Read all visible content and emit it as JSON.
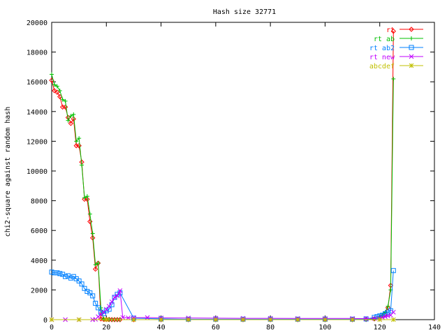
{
  "chart_data": {
    "type": "line",
    "title": "Hash size 32771",
    "xlabel": "",
    "ylabel": "chi2-square against random hash",
    "xlim": [
      0,
      140
    ],
    "ylim": [
      0,
      20000
    ],
    "xticks": [
      0,
      20,
      40,
      60,
      80,
      100,
      120,
      140
    ],
    "yticks": [
      0,
      2000,
      4000,
      6000,
      8000,
      10000,
      12000,
      14000,
      16000,
      18000,
      20000
    ],
    "grid": false,
    "legend_position": "top-right",
    "series": [
      {
        "name": "rt",
        "color": "#ff0000",
        "marker": "diamond",
        "x": [
          0,
          1,
          2,
          3,
          4,
          5,
          6,
          7,
          8,
          9,
          10,
          11,
          12,
          13,
          14,
          15,
          16,
          17,
          18,
          19,
          20,
          21,
          22,
          23,
          24,
          25,
          30,
          40,
          50,
          60,
          70,
          80,
          90,
          100,
          110,
          115,
          118,
          120,
          121,
          122,
          123,
          124,
          125
        ],
        "y": [
          16100,
          15400,
          15300,
          15000,
          14300,
          14300,
          13600,
          13200,
          13500,
          11700,
          11700,
          10600,
          8100,
          8100,
          6600,
          5500,
          3400,
          3800,
          50,
          20,
          10,
          10,
          0,
          0,
          0,
          0,
          0,
          0,
          0,
          0,
          0,
          0,
          0,
          0,
          0,
          10,
          50,
          150,
          250,
          400,
          800,
          2300,
          19400
        ]
      },
      {
        "name": "rt ab",
        "color": "#00c000",
        "marker": "plus",
        "x": [
          0,
          1,
          2,
          3,
          4,
          5,
          6,
          7,
          8,
          9,
          10,
          11,
          12,
          13,
          14,
          15,
          16,
          17,
          18,
          19,
          20,
          21,
          22,
          23,
          24,
          25,
          30,
          40,
          50,
          60,
          70,
          80,
          90,
          100,
          110,
          115,
          118,
          120,
          121,
          122,
          123,
          124,
          125
        ],
        "y": [
          16500,
          15800,
          15700,
          15400,
          14800,
          14700,
          13400,
          13700,
          13800,
          12000,
          12200,
          10400,
          8200,
          8300,
          7100,
          5800,
          3700,
          3800,
          800,
          50,
          20,
          10,
          0,
          0,
          0,
          0,
          0,
          0,
          0,
          0,
          0,
          0,
          0,
          0,
          0,
          10,
          50,
          200,
          300,
          500,
          900,
          2000,
          16200
        ]
      },
      {
        "name": "rt ab2",
        "color": "#0080ff",
        "marker": "square",
        "x": [
          0,
          1,
          2,
          3,
          4,
          5,
          6,
          7,
          8,
          9,
          10,
          11,
          12,
          13,
          14,
          15,
          16,
          17,
          18,
          19,
          20,
          21,
          22,
          23,
          24,
          25,
          30,
          40,
          50,
          60,
          70,
          80,
          90,
          100,
          110,
          115,
          118,
          119,
          120,
          121,
          122,
          123,
          124,
          125
        ],
        "y": [
          3200,
          3150,
          3150,
          3100,
          3050,
          2900,
          2950,
          2800,
          2900,
          2750,
          2600,
          2400,
          2100,
          1900,
          1800,
          1600,
          1100,
          800,
          500,
          400,
          600,
          700,
          1000,
          1500,
          1700,
          1800,
          100,
          50,
          30,
          30,
          30,
          30,
          30,
          30,
          30,
          50,
          150,
          200,
          250,
          300,
          400,
          500,
          600,
          3300
        ]
      },
      {
        "name": "rt new",
        "color": "#c000ff",
        "marker": "x",
        "x": [
          0,
          5,
          10,
          15,
          16,
          17,
          18,
          19,
          20,
          21,
          22,
          23,
          24,
          25,
          26,
          28,
          30,
          35,
          40,
          50,
          60,
          70,
          80,
          90,
          100,
          110,
          115,
          118,
          120,
          121,
          122,
          123,
          124,
          125
        ],
        "y": [
          0,
          0,
          0,
          0,
          20,
          200,
          350,
          500,
          700,
          900,
          1200,
          1500,
          1600,
          1950,
          150,
          120,
          130,
          140,
          120,
          110,
          100,
          90,
          90,
          80,
          80,
          80,
          70,
          80,
          100,
          150,
          200,
          250,
          300,
          500
        ]
      },
      {
        "name": "abcdef",
        "color": "#c0c000",
        "marker": "star",
        "x": [
          0,
          10,
          20,
          30,
          40,
          50,
          60,
          70,
          80,
          90,
          100,
          110,
          120,
          125
        ],
        "y": [
          0,
          0,
          0,
          0,
          0,
          0,
          0,
          0,
          0,
          0,
          0,
          0,
          0,
          0
        ]
      }
    ]
  }
}
